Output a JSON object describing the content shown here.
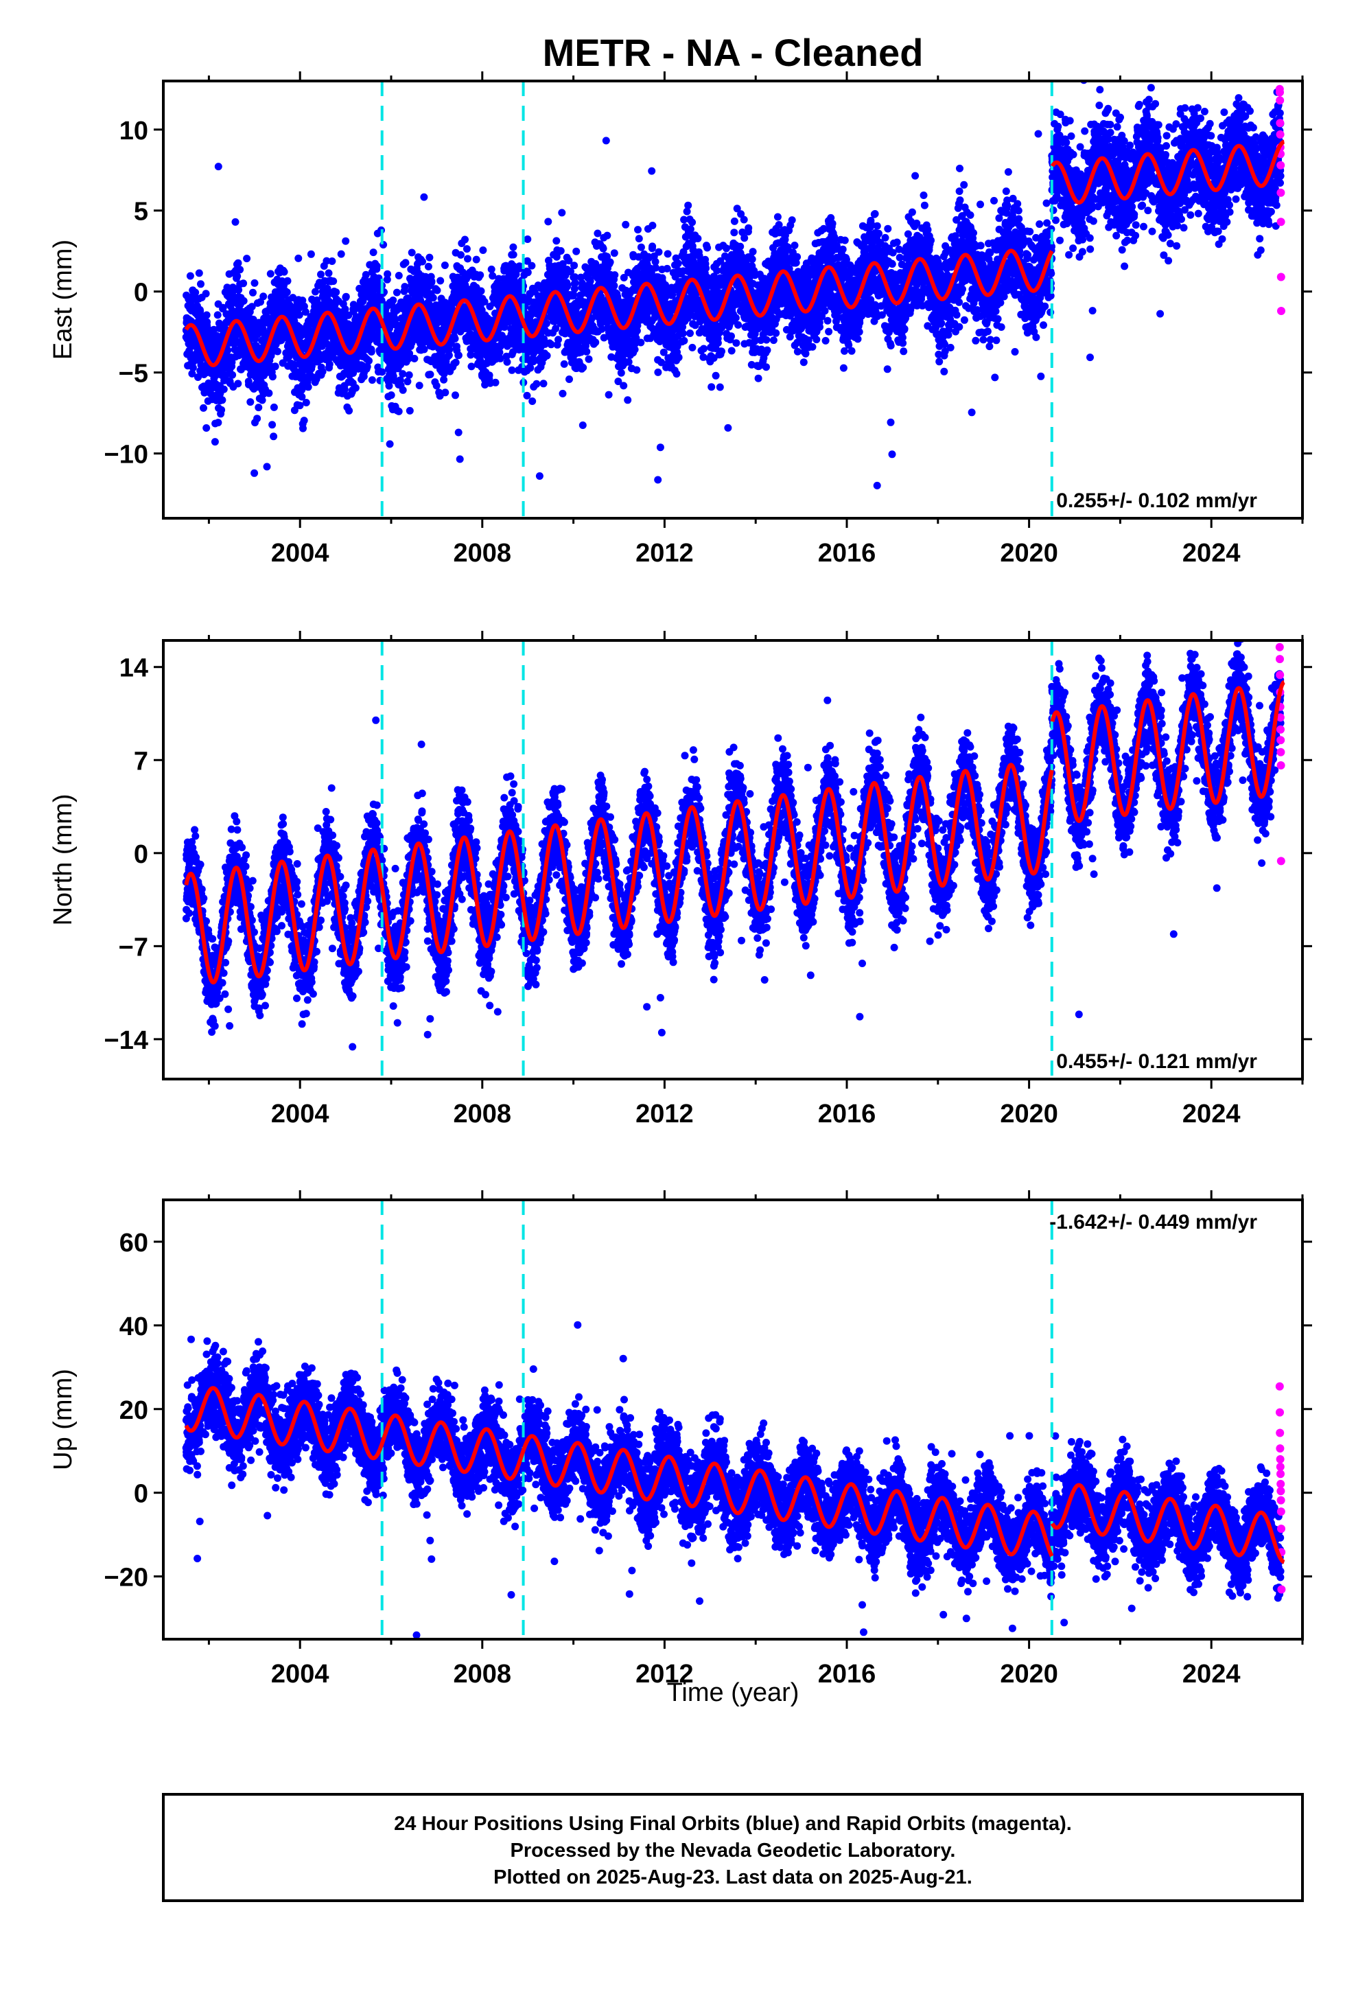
{
  "title": "METR  - NA - Cleaned",
  "colors": {
    "final_orbits": "#0000ff",
    "rapid_orbits": "#ff00ff",
    "model_fit": "#ff0000",
    "offsets": "#00e5e5"
  },
  "footer": {
    "line1": "24 Hour Positions Using Final Orbits (blue) and Rapid Orbits (magenta).",
    "line2": "Processed by the Nevada Geodetic Laboratory.",
    "line3": "Plotted on 2025-Aug-23. Last data on 2025-Aug-21."
  },
  "chart_data": [
    {
      "type": "scatter",
      "component": "East",
      "ylabel": "East (mm)",
      "xlabel": "",
      "xlim": [
        2001.0,
        2026.0
      ],
      "ylim": [
        -14,
        13
      ],
      "x_ticks": [
        2004,
        2008,
        2012,
        2016,
        2020,
        2024
      ],
      "y_ticks": [
        10,
        5,
        0,
        -5,
        -10
      ],
      "y_tick_labels": [
        "10",
        "5",
        "0",
        "−5",
        "−10"
      ],
      "offset_lines": [
        2005.8,
        2008.9,
        2020.5
      ],
      "rate_label": "0.255+/- 0.102 mm/yr",
      "data_start": 2001.5,
      "data_end": 2025.6,
      "model": {
        "trend_mm_per_yr": 0.255,
        "value_2001_5": -3.4,
        "seasonal_amplitude": 1.3,
        "peak_phase": 0.6,
        "steps": [
          {
            "time": 2020.5,
            "size": 5.2
          }
        ]
      },
      "final_orbits_scatter_mm": 1.5,
      "rapid_orbits": {
        "start": 2025.5,
        "values": [
          12.5,
          12.3,
          11.8,
          10.4,
          9.7,
          8.9,
          8.5,
          7.8,
          6.1,
          4.3,
          0.9,
          -1.2
        ]
      }
    },
    {
      "type": "scatter",
      "component": "North",
      "ylabel": "North (mm)",
      "xlabel": "",
      "xlim": [
        2001.0,
        2026.0
      ],
      "ylim": [
        -17,
        16
      ],
      "x_ticks": [
        2004,
        2008,
        2012,
        2016,
        2020,
        2024
      ],
      "y_ticks": [
        14,
        7,
        0,
        -7,
        -14
      ],
      "y_tick_labels": [
        "14",
        "7",
        "0",
        "−7",
        "−14"
      ],
      "offset_lines": [
        2005.8,
        2008.9,
        2020.5
      ],
      "rate_label": "0.455+/- 0.121 mm/yr",
      "data_start": 2001.5,
      "data_end": 2025.6,
      "model": {
        "trend_mm_per_yr": 0.455,
        "value_2001_5": -5.8,
        "seasonal_amplitude": 4.2,
        "peak_phase": 0.6,
        "steps": [
          {
            "time": 2020.5,
            "size": 3.5
          }
        ]
      },
      "final_orbits_scatter_mm": 1.6,
      "rapid_orbits": {
        "start": 2025.5,
        "values": [
          15.5,
          14.6,
          13.4,
          12.1,
          11.0,
          10.2,
          9.3,
          8.5,
          7.6,
          6.6,
          -0.6
        ]
      }
    },
    {
      "type": "scatter",
      "component": "Up",
      "ylabel": "Up (mm)",
      "xlabel": "Time (year)",
      "xlim": [
        2001.0,
        2026.0
      ],
      "ylim": [
        -35,
        70
      ],
      "x_ticks": [
        2004,
        2008,
        2012,
        2016,
        2020,
        2024
      ],
      "y_ticks": [
        60,
        40,
        20,
        0,
        -20
      ],
      "y_tick_labels": [
        "60",
        "40",
        "20",
        "0",
        "−20"
      ],
      "offset_lines": [
        2005.8,
        2008.9,
        2020.5
      ],
      "rate_label": "-1.642+/- 0.449 mm/yr",
      "data_start": 2001.5,
      "data_end": 2025.6,
      "model": {
        "trend_mm_per_yr": -1.642,
        "value_2001_5": 20.5,
        "seasonal_amplitude": 5.5,
        "peak_phase": 0.1,
        "steps": [
          {
            "time": 2020.5,
            "size": 8.0
          }
        ]
      },
      "final_orbits_scatter_mm": 4.5,
      "rapid_orbits": {
        "start": 2025.5,
        "values": [
          25.4,
          19.2,
          14.3,
          10.6,
          8.0,
          6.2,
          4.5,
          2.1,
          0.4,
          -1.8,
          -4.5,
          -8.6,
          -14.2,
          -23.1
        ]
      }
    }
  ]
}
